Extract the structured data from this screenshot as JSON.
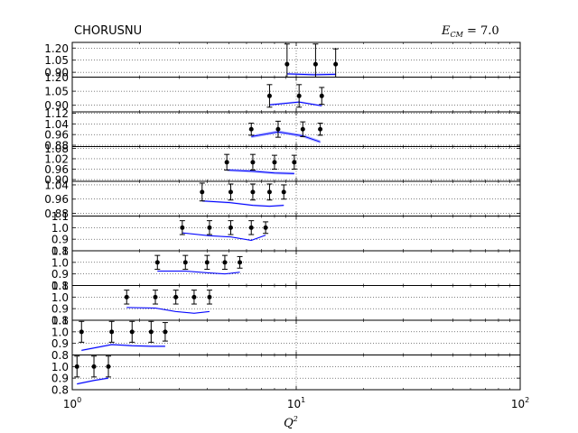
{
  "chart_data": {
    "type": "line",
    "title_left": "CHORUSNU",
    "title_right": "E_CM = 7.0",
    "title_right_main": "E",
    "title_right_sub": "CM",
    "title_right_value": " = 7.0",
    "xlabel": "Q²",
    "xlabel_main": "Q",
    "xlabel_sup": "2",
    "x_scale": "log",
    "xlim": [
      1,
      100
    ],
    "x_ticks": [
      {
        "value": 1,
        "base": "10",
        "exp": "0"
      },
      {
        "value": 10,
        "base": "10",
        "exp": "1"
      },
      {
        "value": 100,
        "base": "10",
        "exp": "2"
      }
    ],
    "grid": "dotted",
    "vertical_reference_line": 10,
    "line_color": "#0000ff",
    "band_color": "#aab0ff",
    "panels": [
      {
        "ylim": [
          0.84,
          1.27
        ],
        "yticks": [
          "1.20",
          "1.05",
          "0.90"
        ],
        "ytick_values": [
          1.2,
          1.05,
          0.9
        ],
        "data": [
          {
            "x": 9.1,
            "y": 1.0,
            "err": 0.25
          },
          {
            "x": 12.2,
            "y": 1.0,
            "err": 0.25
          },
          {
            "x": 15.0,
            "y": 1.0,
            "err": 0.19
          }
        ],
        "theory": {
          "x": [
            9.1,
            12.0,
            15.0
          ],
          "y": [
            0.88,
            0.87,
            0.875
          ],
          "band": 0.015
        }
      },
      {
        "ylim": [
          0.83,
          1.2
        ],
        "yticks": [
          "1.20",
          "1.05",
          "0.90"
        ],
        "ytick_values": [
          1.2,
          1.05,
          0.9
        ],
        "data": [
          {
            "x": 7.6,
            "y": 1.0,
            "err": 0.12
          },
          {
            "x": 10.3,
            "y": 1.0,
            "err": 0.12
          },
          {
            "x": 13.0,
            "y": 1.0,
            "err": 0.09
          }
        ],
        "theory": {
          "x": [
            7.6,
            10.3,
            13.0
          ],
          "y": [
            0.905,
            0.935,
            0.895
          ],
          "band": 0.01
        }
      },
      {
        "ylim": [
          0.87,
          1.13
        ],
        "yticks": [
          "1.12",
          "1.04",
          "0.96",
          "0.88"
        ],
        "ytick_values": [
          1.12,
          1.04,
          0.96,
          0.88
        ],
        "data": [
          {
            "x": 6.3,
            "y": 1.0,
            "err": 0.045
          },
          {
            "x": 8.3,
            "y": 1.0,
            "err": 0.06
          },
          {
            "x": 10.7,
            "y": 1.0,
            "err": 0.055
          },
          {
            "x": 12.8,
            "y": 1.0,
            "err": 0.045
          }
        ],
        "theory": {
          "x": [
            6.3,
            8.3,
            10.7,
            12.8
          ],
          "y": [
            0.945,
            0.98,
            0.95,
            0.905
          ],
          "band": 0.012
        }
      },
      {
        "ylim": [
          0.89,
          1.09
        ],
        "yticks": [
          "1.08",
          "1.02",
          "0.96",
          "0.90"
        ],
        "ytick_values": [
          1.08,
          1.02,
          0.96,
          0.9
        ],
        "data": [
          {
            "x": 4.9,
            "y": 1.0,
            "err": 0.045
          },
          {
            "x": 6.4,
            "y": 1.0,
            "err": 0.045
          },
          {
            "x": 8.0,
            "y": 1.0,
            "err": 0.04
          },
          {
            "x": 9.8,
            "y": 1.0,
            "err": 0.04
          }
        ],
        "theory": {
          "x": [
            4.9,
            6.4,
            8.0,
            9.8
          ],
          "y": [
            0.955,
            0.948,
            0.938,
            0.935
          ],
          "band": 0.008
        }
      },
      {
        "ylim": [
          0.865,
          1.06
        ],
        "yticks": [
          "1.04",
          "0.96",
          "0.88"
        ],
        "ytick_values": [
          1.04,
          0.96,
          0.88
        ],
        "data": [
          {
            "x": 3.8,
            "y": 1.0,
            "err": 0.05
          },
          {
            "x": 5.1,
            "y": 1.0,
            "err": 0.045
          },
          {
            "x": 6.4,
            "y": 1.0,
            "err": 0.045
          },
          {
            "x": 7.6,
            "y": 1.0,
            "err": 0.045
          },
          {
            "x": 8.8,
            "y": 1.0,
            "err": 0.04
          }
        ],
        "theory": {
          "x": [
            3.8,
            5.1,
            6.4,
            7.6,
            8.8
          ],
          "y": [
            0.95,
            0.94,
            0.925,
            0.92,
            0.925
          ],
          "band": 0.005
        }
      },
      {
        "ylim": [
          0.8,
          1.1
        ],
        "yticks": [
          "1.1",
          "1.0",
          "0.9",
          "0.8"
        ],
        "ytick_values": [
          1.1,
          1.0,
          0.9,
          0.8
        ],
        "data": [
          {
            "x": 3.1,
            "y": 1.0,
            "err": 0.06
          },
          {
            "x": 4.1,
            "y": 1.0,
            "err": 0.06
          },
          {
            "x": 5.1,
            "y": 1.0,
            "err": 0.06
          },
          {
            "x": 6.3,
            "y": 1.0,
            "err": 0.06
          },
          {
            "x": 7.3,
            "y": 1.0,
            "err": 0.05
          }
        ],
        "theory": {
          "x": [
            3.1,
            4.1,
            5.1,
            6.3,
            7.3
          ],
          "y": [
            0.955,
            0.93,
            0.92,
            0.89,
            0.935
          ],
          "band": 0.005
        }
      },
      {
        "ylim": [
          0.8,
          1.1
        ],
        "yticks": [
          "1.1",
          "1.0",
          "0.9",
          "0.8"
        ],
        "ytick_values": [
          1.1,
          1.0,
          0.9,
          0.8
        ],
        "data": [
          {
            "x": 2.4,
            "y": 1.0,
            "err": 0.06
          },
          {
            "x": 3.2,
            "y": 1.0,
            "err": 0.06
          },
          {
            "x": 4.0,
            "y": 1.0,
            "err": 0.06
          },
          {
            "x": 4.8,
            "y": 1.0,
            "err": 0.06
          },
          {
            "x": 5.6,
            "y": 1.0,
            "err": 0.05
          }
        ],
        "theory": {
          "x": [
            2.4,
            3.2,
            4.0,
            4.8,
            5.6
          ],
          "y": [
            0.925,
            0.925,
            0.91,
            0.9,
            0.915
          ],
          "band": 0.005
        }
      },
      {
        "ylim": [
          0.8,
          1.1
        ],
        "yticks": [
          "1.1",
          "1.0",
          "0.9",
          "0.8"
        ],
        "ytick_values": [
          1.1,
          1.0,
          0.9,
          0.8
        ],
        "data": [
          {
            "x": 1.75,
            "y": 1.0,
            "err": 0.06
          },
          {
            "x": 2.35,
            "y": 1.0,
            "err": 0.06
          },
          {
            "x": 2.9,
            "y": 1.0,
            "err": 0.06
          },
          {
            "x": 3.5,
            "y": 1.0,
            "err": 0.06
          },
          {
            "x": 4.1,
            "y": 1.0,
            "err": 0.06
          }
        ],
        "theory": {
          "x": [
            1.75,
            2.35,
            2.9,
            3.5,
            4.1
          ],
          "y": [
            0.91,
            0.905,
            0.875,
            0.86,
            0.875
          ],
          "band": 0.005
        }
      },
      {
        "ylim": [
          0.8,
          1.1
        ],
        "yticks": [
          "1.1",
          "1.0",
          "0.9",
          "0.8"
        ],
        "ytick_values": [
          1.1,
          1.0,
          0.9,
          0.8
        ],
        "data": [
          {
            "x": 1.1,
            "y": 1.0,
            "err": 0.09
          },
          {
            "x": 1.5,
            "y": 1.0,
            "err": 0.09
          },
          {
            "x": 1.85,
            "y": 1.0,
            "err": 0.09
          },
          {
            "x": 2.25,
            "y": 1.0,
            "err": 0.09
          },
          {
            "x": 2.6,
            "y": 1.0,
            "err": 0.08
          }
        ],
        "theory": {
          "x": [
            1.1,
            1.5,
            1.85,
            2.25,
            2.6
          ],
          "y": [
            0.84,
            0.89,
            0.88,
            0.875,
            0.875
          ],
          "band": 0.008
        }
      },
      {
        "ylim": [
          0.8,
          1.1
        ],
        "yticks": [
          "1.0",
          "0.9",
          "0.8"
        ],
        "ytick_values": [
          1.0,
          0.9,
          0.8
        ],
        "data": [
          {
            "x": 1.05,
            "y": 1.0,
            "err": 0.09
          },
          {
            "x": 1.25,
            "y": 1.0,
            "err": 0.09
          },
          {
            "x": 1.45,
            "y": 1.0,
            "err": 0.09
          }
        ],
        "theory": {
          "x": [
            1.05,
            1.25,
            1.45
          ],
          "y": [
            0.85,
            0.88,
            0.9
          ],
          "band": 0.008
        }
      }
    ]
  }
}
